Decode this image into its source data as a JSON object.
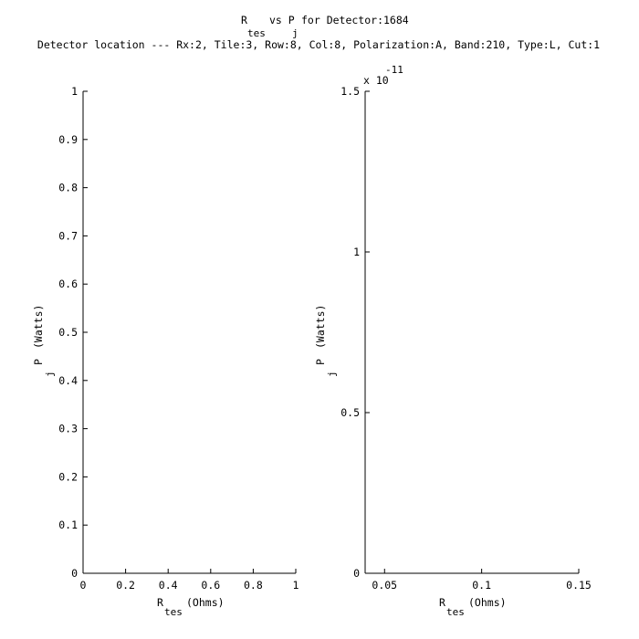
{
  "figure": {
    "title_main_r": "R",
    "title_sub_tes": "tes",
    "title_vs_p": "vs P",
    "title_sub_j": "j",
    "title_for": "for Detector:1684",
    "location": "Detector location --- Rx:2, Tile:3, Row:8, Col:8, Polarization:A, Band:210, Type:L, Cut:1"
  },
  "chart_data": [
    {
      "type": "scatter",
      "title": "",
      "xlabel": "R (Ohms)",
      "xlabel_main": "R",
      "xlabel_sub": "tes",
      "xlabel_unit": "(Ohms)",
      "ylabel": "P (Watts)",
      "ylabel_main": "P",
      "ylabel_sub": "j",
      "ylabel_unit": "(Watts)",
      "xlim": [
        0,
        1
      ],
      "ylim": [
        0,
        1
      ],
      "x_ticks": [
        0,
        0.2,
        0.4,
        0.6,
        0.8,
        1
      ],
      "x_tick_labels": [
        "0",
        "0.2",
        "0.4",
        "0.6",
        "0.8",
        "1"
      ],
      "y_ticks": [
        0,
        0.1,
        0.2,
        0.3,
        0.4,
        0.5,
        0.6,
        0.7,
        0.8,
        0.9,
        1
      ],
      "y_tick_labels": [
        "0",
        "0.1",
        "0.2",
        "0.3",
        "0.4",
        "0.5",
        "0.6",
        "0.7",
        "0.8",
        "0.9",
        "1"
      ],
      "exponent": "",
      "series": [],
      "grid": false
    },
    {
      "type": "scatter",
      "title": "",
      "xlabel": "R (Ohms)",
      "xlabel_main": "R",
      "xlabel_sub": "tes",
      "xlabel_unit": "(Ohms)",
      "ylabel": "P (Watts)",
      "ylabel_main": "P",
      "ylabel_sub": "j",
      "ylabel_unit": "(Watts)",
      "xlim": [
        0.04,
        0.15
      ],
      "ylim": [
        0,
        1.5
      ],
      "x_ticks": [
        0.05,
        0.1,
        0.15
      ],
      "x_tick_labels": [
        "0.05",
        "0.1",
        "0.15"
      ],
      "y_ticks": [
        0,
        0.5,
        1,
        1.5
      ],
      "y_tick_labels": [
        "0",
        "0.5",
        "1",
        "1.5"
      ],
      "exponent": "x 10",
      "exponent_power": "-11",
      "series": [],
      "grid": false
    }
  ]
}
